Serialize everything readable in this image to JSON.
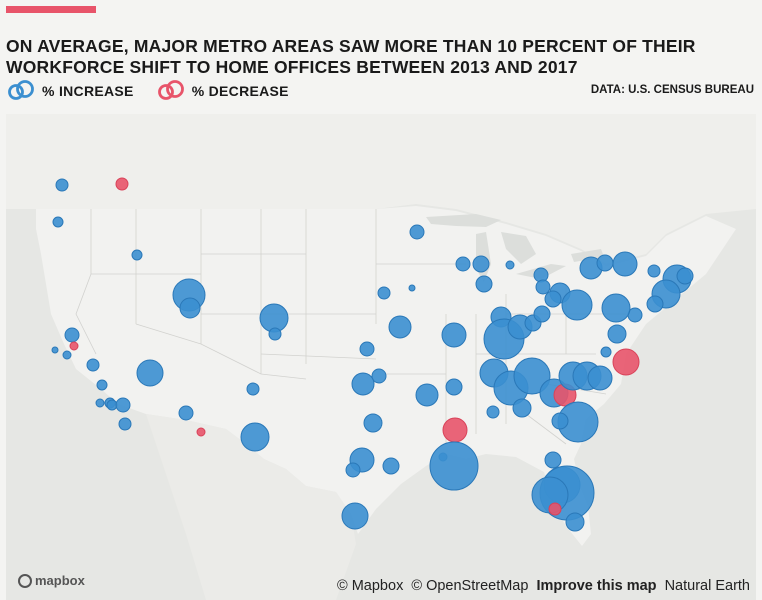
{
  "header": {
    "title": "ON AVERAGE, MAJOR METRO AREAS SAW MORE THAN 10 PERCENT OF THEIR WORKFORCE SHIFT TO HOME OFFICES BETWEEN 2013 AND 2017",
    "source": "DATA: U.S. CENSUS BUREAU"
  },
  "legend": {
    "increase_label": "% INCREASE",
    "decrease_label": "% DECREASE"
  },
  "colors": {
    "accent": "#e8546a",
    "increase": "#3b8fd0",
    "decrease": "#e8546a"
  },
  "map": {
    "logo": "mapbox",
    "attribution": {
      "mapbox": "© Mapbox",
      "osm": "© OpenStreetMap",
      "improve": "Improve this map",
      "natural_earth": "Natural Earth"
    }
  }
}
